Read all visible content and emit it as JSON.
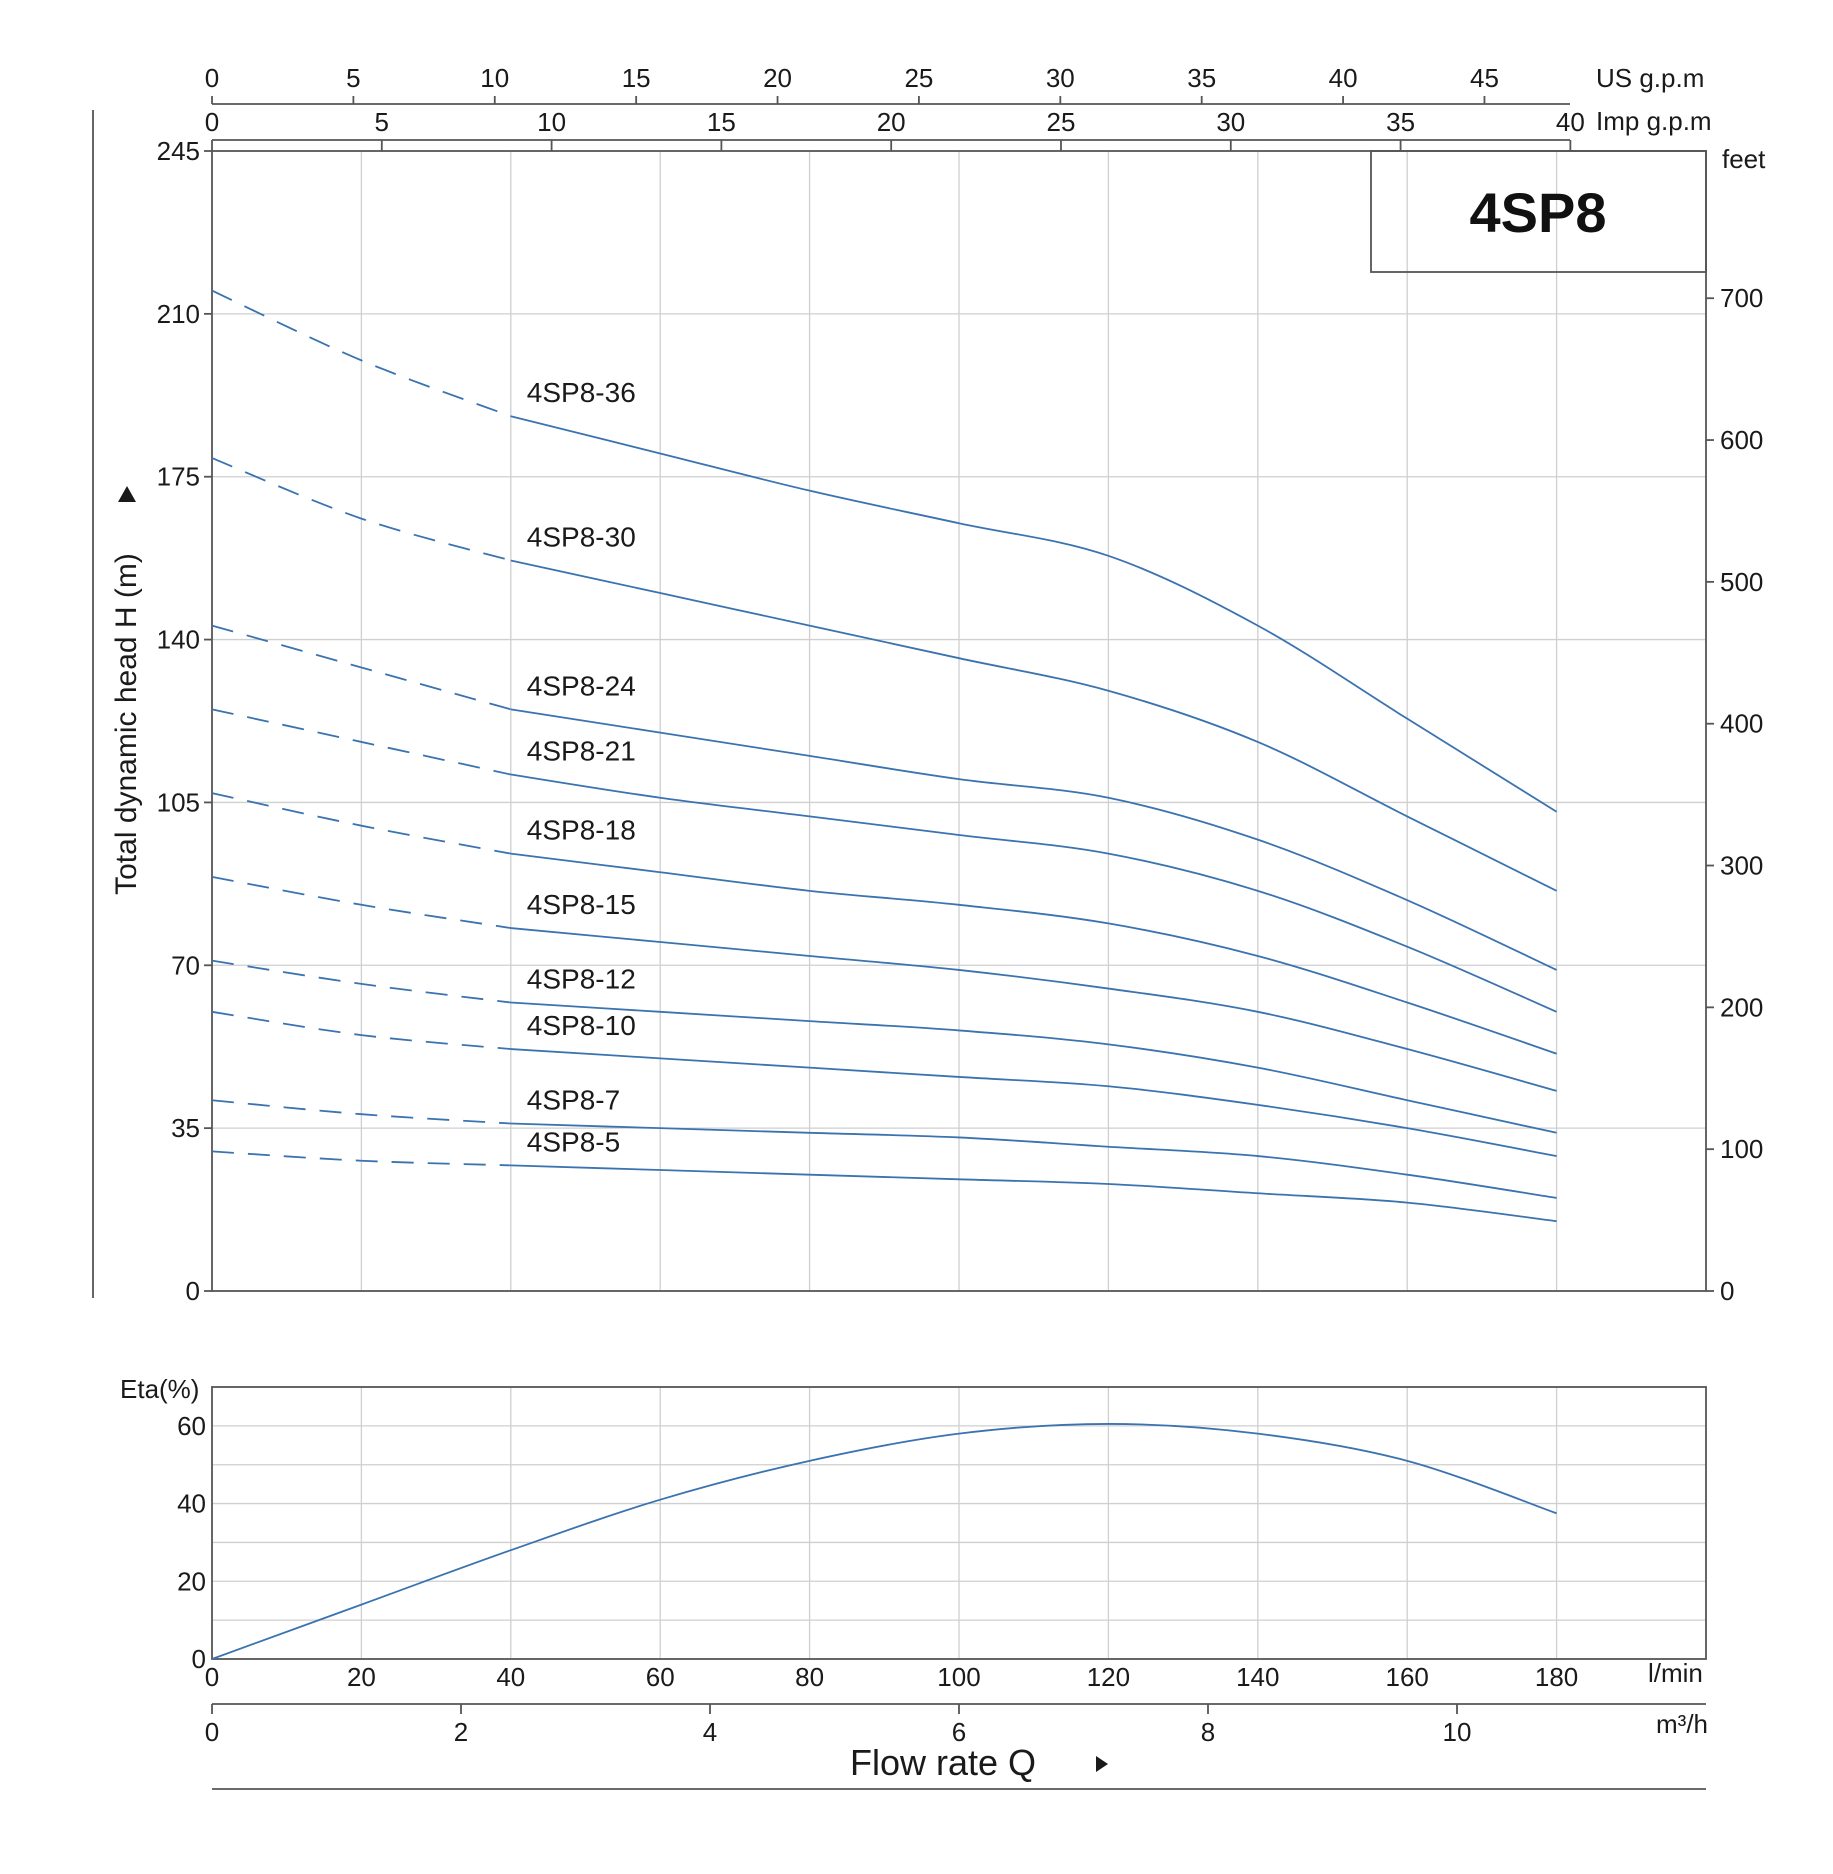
{
  "chart_data": {
    "type": "line",
    "model": "4SP8",
    "head_chart": {
      "ylabel": "Total dynamic head H (m)",
      "y_ticks_m": [
        0,
        35,
        70,
        105,
        140,
        175,
        210,
        245
      ],
      "ylim_m": [
        0,
        245
      ],
      "y2_unit": "feet",
      "y2_ticks_feet": [
        0,
        100,
        200,
        300,
        400,
        500,
        600,
        700
      ],
      "top_axis_us": {
        "unit": "US g.p.m",
        "ticks": [
          0,
          5,
          10,
          15,
          20,
          25,
          30,
          35,
          40,
          45
        ]
      },
      "top_axis_imp": {
        "unit": "Imp g.p.m",
        "ticks": [
          0,
          5,
          10,
          15,
          20,
          25,
          30,
          35,
          40
        ]
      },
      "xlim_lmin": [
        0,
        200
      ],
      "dashed_until_lmin": 40,
      "series": [
        {
          "name": "4SP8-36",
          "x": [
            0,
            20,
            40,
            60,
            80,
            100,
            120,
            140,
            160,
            180
          ],
          "y": [
            215,
            200,
            188,
            180,
            172,
            165,
            158,
            143,
            123,
            103
          ]
        },
        {
          "name": "4SP8-30",
          "x": [
            0,
            20,
            40,
            60,
            80,
            100,
            120,
            140,
            160,
            180
          ],
          "y": [
            179,
            166,
            157,
            150,
            143,
            136,
            129,
            118,
            102,
            86
          ]
        },
        {
          "name": "4SP8-24",
          "x": [
            0,
            20,
            40,
            60,
            80,
            100,
            120,
            140,
            160,
            180
          ],
          "y": [
            143,
            134,
            125,
            120,
            115,
            110,
            106,
            97,
            84,
            69
          ]
        },
        {
          "name": "4SP8-21",
          "x": [
            0,
            20,
            40,
            60,
            80,
            100,
            120,
            140,
            160,
            180
          ],
          "y": [
            125,
            118,
            111,
            106,
            102,
            98,
            94,
            86,
            74,
            60
          ]
        },
        {
          "name": "4SP8-18",
          "x": [
            0,
            20,
            40,
            60,
            80,
            100,
            120,
            140,
            160,
            180
          ],
          "y": [
            107,
            100,
            94,
            90,
            86,
            83,
            79,
            72,
            62,
            51
          ]
        },
        {
          "name": "4SP8-15",
          "x": [
            0,
            20,
            40,
            60,
            80,
            100,
            120,
            140,
            160,
            180
          ],
          "y": [
            89,
            83,
            78,
            75,
            72,
            69,
            65,
            60,
            52,
            43
          ]
        },
        {
          "name": "4SP8-12",
          "x": [
            0,
            20,
            40,
            60,
            80,
            100,
            120,
            140,
            160,
            180
          ],
          "y": [
            71,
            66,
            62,
            60,
            58,
            56,
            53,
            48,
            41,
            34
          ]
        },
        {
          "name": "4SP8-10",
          "x": [
            0,
            20,
            40,
            60,
            80,
            100,
            120,
            140,
            160,
            180
          ],
          "y": [
            60,
            55,
            52,
            50,
            48,
            46,
            44,
            40,
            35,
            29
          ]
        },
        {
          "name": "4SP8-7",
          "x": [
            0,
            20,
            40,
            60,
            80,
            100,
            120,
            140,
            160,
            180
          ],
          "y": [
            41,
            38,
            36,
            35,
            34,
            33,
            31,
            29,
            25,
            20
          ]
        },
        {
          "name": "4SP8-5",
          "x": [
            0,
            20,
            40,
            60,
            80,
            100,
            120,
            140,
            160,
            180
          ],
          "y": [
            30,
            28,
            27,
            26,
            25,
            24,
            23,
            21,
            19,
            15
          ]
        }
      ]
    },
    "efficiency_chart": {
      "ylabel": "Eta(%)",
      "y_ticks": [
        0,
        20,
        40,
        60
      ],
      "ylim": [
        0,
        70
      ],
      "series": [
        {
          "x": [
            0,
            20,
            40,
            60,
            80,
            100,
            120,
            140,
            160,
            180
          ],
          "y": [
            0,
            14,
            28,
            41,
            51,
            58,
            60.5,
            58,
            51,
            37.5
          ]
        }
      ]
    },
    "bottom_axis_lmin": {
      "unit": "l/min",
      "ticks": [
        0,
        20,
        40,
        60,
        80,
        100,
        120,
        140,
        160,
        180
      ]
    },
    "bottom_axis_m3h": {
      "unit": "m³/h",
      "ticks": [
        0,
        2,
        4,
        6,
        8,
        10
      ]
    },
    "xlabel": "Flow rate Q"
  }
}
